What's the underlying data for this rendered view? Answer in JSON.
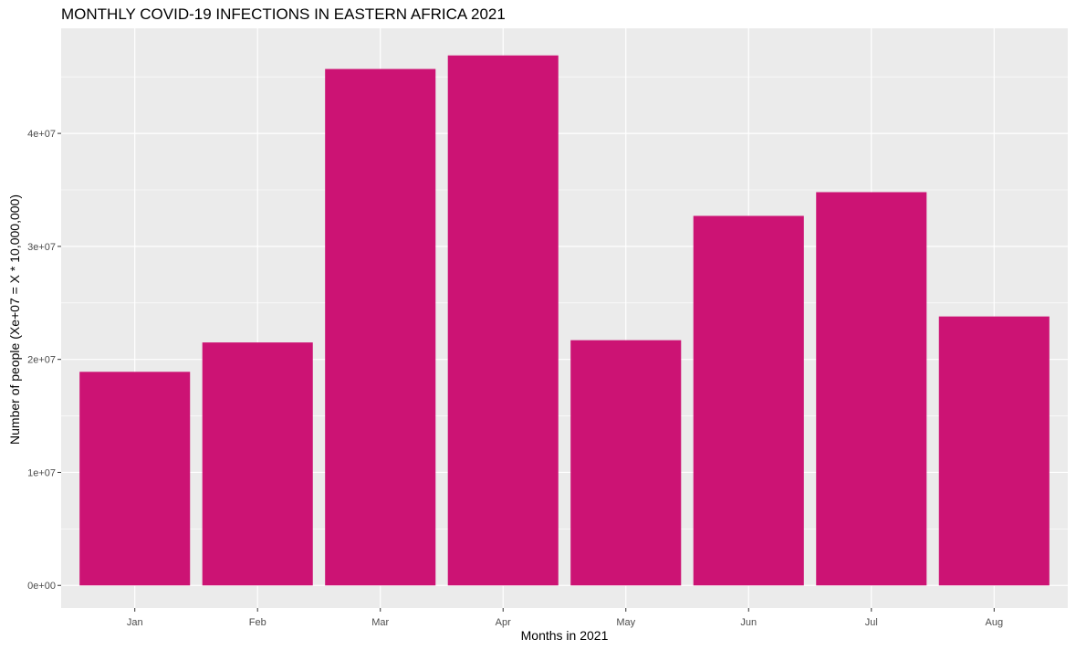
{
  "chart_data": {
    "type": "bar",
    "title": "MONTHLY COVID-19 INFECTIONS IN EASTERN AFRICA 2021",
    "xlabel": "Months in 2021",
    "ylabel": "Number of people (Xe+07 = X * 10,000,000)",
    "categories": [
      "Jan",
      "Feb",
      "Mar",
      "Apr",
      "May",
      "Jun",
      "Jul",
      "Aug"
    ],
    "values": [
      18900000,
      21500000,
      45700000,
      46900000,
      21700000,
      32700000,
      34800000,
      23800000
    ],
    "ylim": [
      -2000000,
      49300000
    ],
    "yticks": [
      0,
      10000000,
      20000000,
      30000000,
      40000000
    ],
    "ytick_labels": [
      "0e+00",
      "1e+07",
      "2e+07",
      "3e+07",
      "4e+07"
    ],
    "grid": true,
    "bar_color": "#CC1374",
    "panel_color": "#EBEBEB",
    "grid_color": "#FFFFFF"
  }
}
